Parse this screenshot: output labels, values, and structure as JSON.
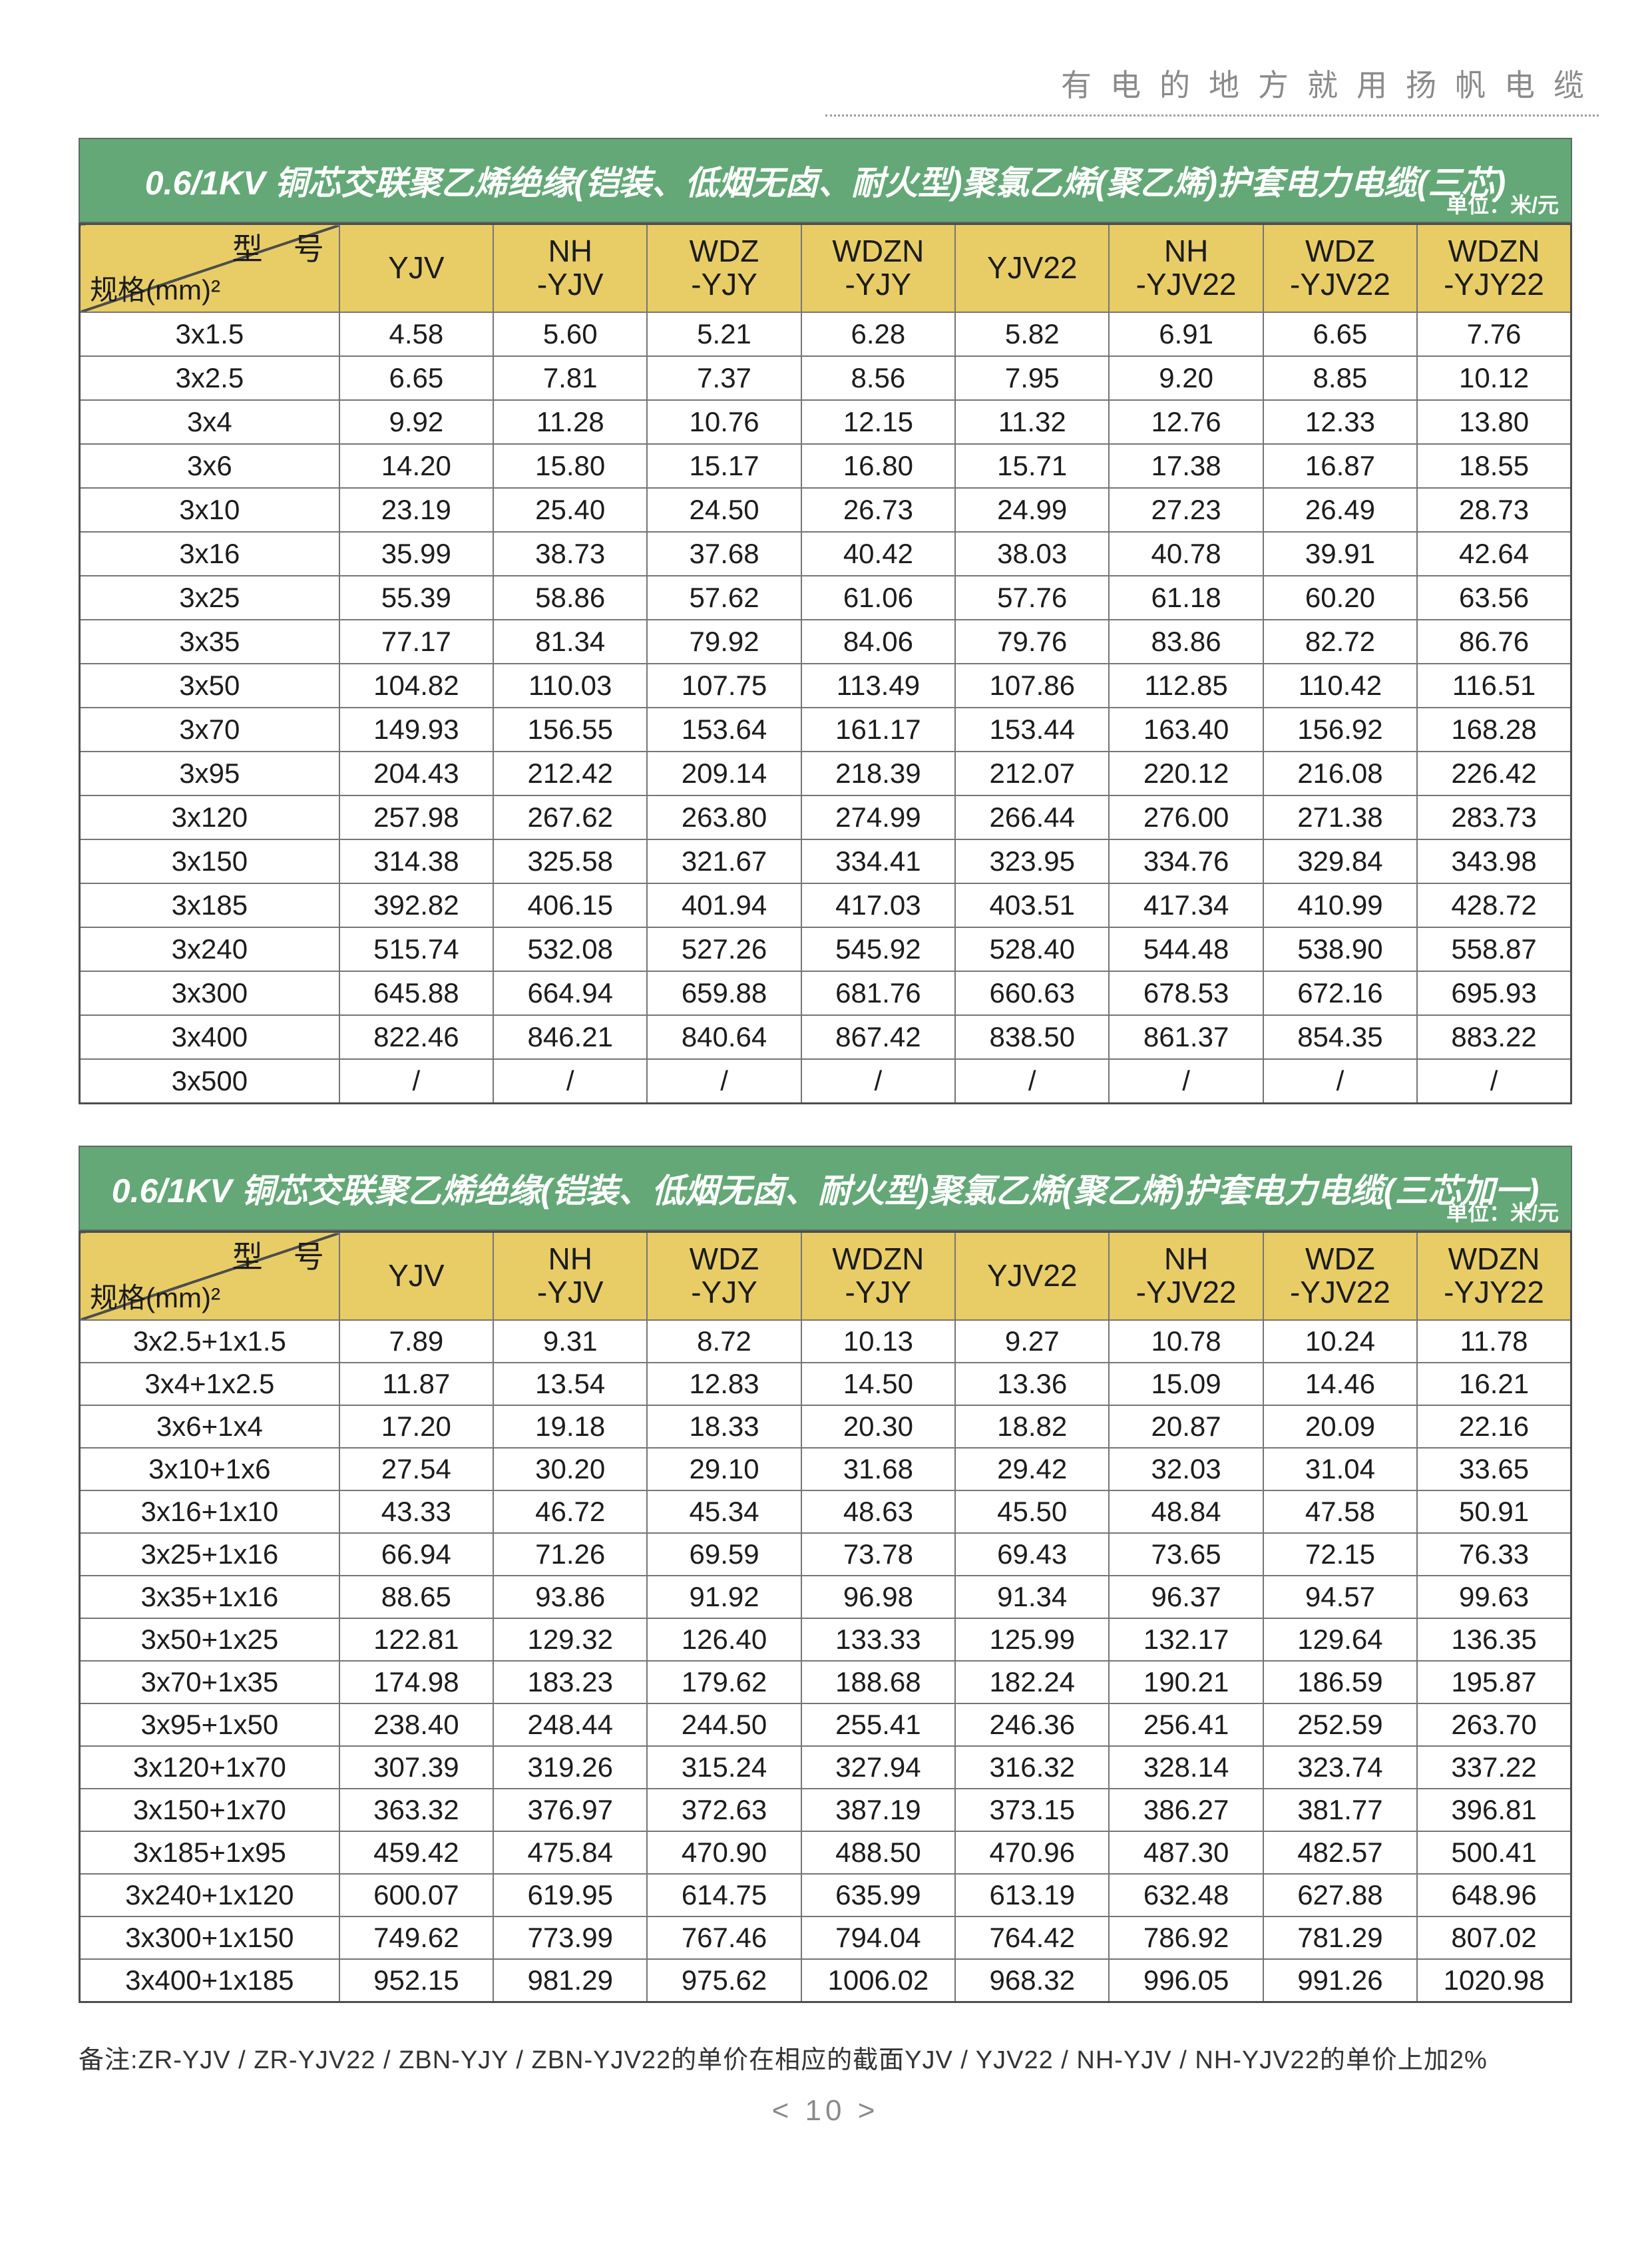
{
  "page": {
    "brand_header": "有电的地方就用扬帆电缆",
    "note": "备注:ZR-YJV / ZR-YJV22 / ZBN-YJY / ZBN-YJV22的单价在相应的截面YJV / YJV22 / NH-YJV / NH-YJV22的单价上加2%",
    "page_number": "< 10 >"
  },
  "colors": {
    "green": "#63a876",
    "yellow": "#e8cd67",
    "text_dark": "#1c1c1c",
    "brand_gray": "#8a8a8a",
    "border_dark": "#4d4d4d",
    "border_mid": "#757575"
  },
  "tables": [
    {
      "title": "0.6/1KV 铜芯交联聚乙烯绝缘(铠装、低烟无卤、耐火型)聚氯乙烯(聚乙烯)护套电力电缆(三芯)",
      "unit": "单位：米/元",
      "corner_top": "型　号",
      "corner_bottom": "规格(mm)²",
      "columns": [
        "YJV",
        "NH|-YJV",
        "WDZ|-YJY",
        "WDZN|-YJY",
        "YJV22",
        "NH|-YJV22",
        "WDZ|-YJV22",
        "WDZN|-YJY22"
      ],
      "rows": [
        {
          "spec": "3x1.5",
          "values": [
            "4.58",
            "5.60",
            "5.21",
            "6.28",
            "5.82",
            "6.91",
            "6.65",
            "7.76"
          ]
        },
        {
          "spec": "3x2.5",
          "values": [
            "6.65",
            "7.81",
            "7.37",
            "8.56",
            "7.95",
            "9.20",
            "8.85",
            "10.12"
          ]
        },
        {
          "spec": "3x4",
          "values": [
            "9.92",
            "11.28",
            "10.76",
            "12.15",
            "11.32",
            "12.76",
            "12.33",
            "13.80"
          ]
        },
        {
          "spec": "3x6",
          "values": [
            "14.20",
            "15.80",
            "15.17",
            "16.80",
            "15.71",
            "17.38",
            "16.87",
            "18.55"
          ]
        },
        {
          "spec": "3x10",
          "values": [
            "23.19",
            "25.40",
            "24.50",
            "26.73",
            "24.99",
            "27.23",
            "26.49",
            "28.73"
          ]
        },
        {
          "spec": "3x16",
          "values": [
            "35.99",
            "38.73",
            "37.68",
            "40.42",
            "38.03",
            "40.78",
            "39.91",
            "42.64"
          ]
        },
        {
          "spec": "3x25",
          "values": [
            "55.39",
            "58.86",
            "57.62",
            "61.06",
            "57.76",
            "61.18",
            "60.20",
            "63.56"
          ]
        },
        {
          "spec": "3x35",
          "values": [
            "77.17",
            "81.34",
            "79.92",
            "84.06",
            "79.76",
            "83.86",
            "82.72",
            "86.76"
          ]
        },
        {
          "spec": "3x50",
          "values": [
            "104.82",
            "110.03",
            "107.75",
            "113.49",
            "107.86",
            "112.85",
            "110.42",
            "116.51"
          ]
        },
        {
          "spec": "3x70",
          "values": [
            "149.93",
            "156.55",
            "153.64",
            "161.17",
            "153.44",
            "163.40",
            "156.92",
            "168.28"
          ]
        },
        {
          "spec": "3x95",
          "values": [
            "204.43",
            "212.42",
            "209.14",
            "218.39",
            "212.07",
            "220.12",
            "216.08",
            "226.42"
          ]
        },
        {
          "spec": "3x120",
          "values": [
            "257.98",
            "267.62",
            "263.80",
            "274.99",
            "266.44",
            "276.00",
            "271.38",
            "283.73"
          ]
        },
        {
          "spec": "3x150",
          "values": [
            "314.38",
            "325.58",
            "321.67",
            "334.41",
            "323.95",
            "334.76",
            "329.84",
            "343.98"
          ]
        },
        {
          "spec": "3x185",
          "values": [
            "392.82",
            "406.15",
            "401.94",
            "417.03",
            "403.51",
            "417.34",
            "410.99",
            "428.72"
          ]
        },
        {
          "spec": "3x240",
          "values": [
            "515.74",
            "532.08",
            "527.26",
            "545.92",
            "528.40",
            "544.48",
            "538.90",
            "558.87"
          ]
        },
        {
          "spec": "3x300",
          "values": [
            "645.88",
            "664.94",
            "659.88",
            "681.76",
            "660.63",
            "678.53",
            "672.16",
            "695.93"
          ]
        },
        {
          "spec": "3x400",
          "values": [
            "822.46",
            "846.21",
            "840.64",
            "867.42",
            "838.50",
            "861.37",
            "854.35",
            "883.22"
          ]
        },
        {
          "spec": "3x500",
          "values": [
            "/",
            "/",
            "/",
            "/",
            "/",
            "/",
            "/",
            "/"
          ]
        }
      ]
    },
    {
      "title": "0.6/1KV 铜芯交联聚乙烯绝缘(铠装、低烟无卤、耐火型)聚氯乙烯(聚乙烯)护套电力电缆(三芯加一)",
      "unit": "单位：米/元",
      "corner_top": "型　号",
      "corner_bottom": "规格(mm)²",
      "columns": [
        "YJV",
        "NH|-YJV",
        "WDZ|-YJY",
        "WDZN|-YJY",
        "YJV22",
        "NH|-YJV22",
        "WDZ|-YJV22",
        "WDZN|-YJY22"
      ],
      "rows": [
        {
          "spec": "3x2.5+1x1.5",
          "values": [
            "7.89",
            "9.31",
            "8.72",
            "10.13",
            "9.27",
            "10.78",
            "10.24",
            "11.78"
          ]
        },
        {
          "spec": "3x4+1x2.5",
          "values": [
            "11.87",
            "13.54",
            "12.83",
            "14.50",
            "13.36",
            "15.09",
            "14.46",
            "16.21"
          ]
        },
        {
          "spec": "3x6+1x4",
          "values": [
            "17.20",
            "19.18",
            "18.33",
            "20.30",
            "18.82",
            "20.87",
            "20.09",
            "22.16"
          ]
        },
        {
          "spec": "3x10+1x6",
          "values": [
            "27.54",
            "30.20",
            "29.10",
            "31.68",
            "29.42",
            "32.03",
            "31.04",
            "33.65"
          ]
        },
        {
          "spec": "3x16+1x10",
          "values": [
            "43.33",
            "46.72",
            "45.34",
            "48.63",
            "45.50",
            "48.84",
            "47.58",
            "50.91"
          ]
        },
        {
          "spec": "3x25+1x16",
          "values": [
            "66.94",
            "71.26",
            "69.59",
            "73.78",
            "69.43",
            "73.65",
            "72.15",
            "76.33"
          ]
        },
        {
          "spec": "3x35+1x16",
          "values": [
            "88.65",
            "93.86",
            "91.92",
            "96.98",
            "91.34",
            "96.37",
            "94.57",
            "99.63"
          ]
        },
        {
          "spec": "3x50+1x25",
          "values": [
            "122.81",
            "129.32",
            "126.40",
            "133.33",
            "125.99",
            "132.17",
            "129.64",
            "136.35"
          ]
        },
        {
          "spec": "3x70+1x35",
          "values": [
            "174.98",
            "183.23",
            "179.62",
            "188.68",
            "182.24",
            "190.21",
            "186.59",
            "195.87"
          ]
        },
        {
          "spec": "3x95+1x50",
          "values": [
            "238.40",
            "248.44",
            "244.50",
            "255.41",
            "246.36",
            "256.41",
            "252.59",
            "263.70"
          ]
        },
        {
          "spec": "3x120+1x70",
          "values": [
            "307.39",
            "319.26",
            "315.24",
            "327.94",
            "316.32",
            "328.14",
            "323.74",
            "337.22"
          ]
        },
        {
          "spec": "3x150+1x70",
          "values": [
            "363.32",
            "376.97",
            "372.63",
            "387.19",
            "373.15",
            "386.27",
            "381.77",
            "396.81"
          ]
        },
        {
          "spec": "3x185+1x95",
          "values": [
            "459.42",
            "475.84",
            "470.90",
            "488.50",
            "470.96",
            "487.30",
            "482.57",
            "500.41"
          ]
        },
        {
          "spec": "3x240+1x120",
          "values": [
            "600.07",
            "619.95",
            "614.75",
            "635.99",
            "613.19",
            "632.48",
            "627.88",
            "648.96"
          ]
        },
        {
          "spec": "3x300+1x150",
          "values": [
            "749.62",
            "773.99",
            "767.46",
            "794.04",
            "764.42",
            "786.92",
            "781.29",
            "807.02"
          ]
        },
        {
          "spec": "3x400+1x185",
          "values": [
            "952.15",
            "981.29",
            "975.62",
            "1006.02",
            "968.32",
            "996.05",
            "991.26",
            "1020.98"
          ]
        }
      ]
    }
  ]
}
